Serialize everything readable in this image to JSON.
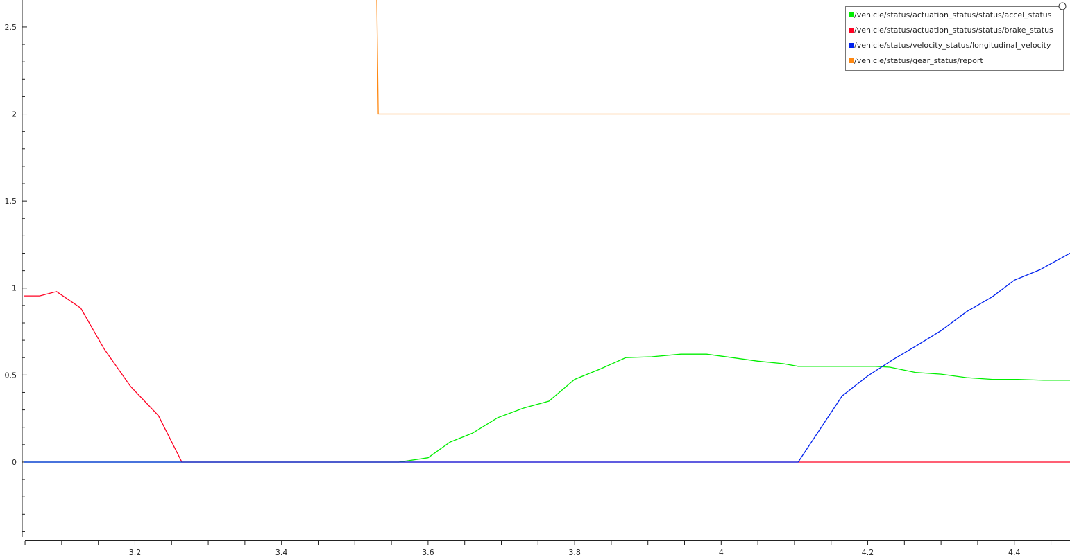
{
  "chart_data": {
    "type": "line",
    "title": "",
    "xlabel": "",
    "ylabel": "",
    "xlim": [
      3.049,
      4.476
    ],
    "ylim": [
      -0.454,
      2.655
    ],
    "x_ticks": [
      3.2,
      3.4,
      3.6,
      3.8,
      4,
      4.2,
      4.4
    ],
    "x_tick_labels": [
      "3.2",
      "3.4",
      "3.6",
      "3.8",
      "4",
      "4.2",
      "4.4"
    ],
    "y_ticks": [
      0,
      0.5,
      1,
      1.5,
      2,
      2.5
    ],
    "y_tick_labels": [
      "0",
      "0.5",
      "1",
      "1.5",
      "2",
      "2.5"
    ],
    "grid": false,
    "legend_position": "top-right",
    "series": [
      {
        "name": "/vehicle/status/actuation_status/status/accel_status",
        "color": "#00ee00",
        "points": [
          [
            3.049,
            0
          ],
          [
            3.56,
            0
          ],
          [
            3.6,
            0.025
          ],
          [
            3.63,
            0.115
          ],
          [
            3.66,
            0.165
          ],
          [
            3.695,
            0.255
          ],
          [
            3.73,
            0.31
          ],
          [
            3.765,
            0.35
          ],
          [
            3.8,
            0.475
          ],
          [
            3.835,
            0.535
          ],
          [
            3.87,
            0.6
          ],
          [
            3.905,
            0.605
          ],
          [
            3.945,
            0.62
          ],
          [
            3.98,
            0.62
          ],
          [
            4.015,
            0.6
          ],
          [
            4.05,
            0.58
          ],
          [
            4.085,
            0.565
          ],
          [
            4.105,
            0.55
          ],
          [
            4.14,
            0.55
          ],
          [
            4.175,
            0.55
          ],
          [
            4.21,
            0.55
          ],
          [
            4.23,
            0.545
          ],
          [
            4.265,
            0.515
          ],
          [
            4.3,
            0.505
          ],
          [
            4.335,
            0.485
          ],
          [
            4.37,
            0.475
          ],
          [
            4.405,
            0.475
          ],
          [
            4.44,
            0.47
          ],
          [
            4.476,
            0.47
          ]
        ]
      },
      {
        "name": "/vehicle/status/actuation_status/status/brake_status",
        "color": "#ff0022",
        "points": [
          [
            3.049,
            0.955
          ],
          [
            3.07,
            0.955
          ],
          [
            3.093,
            0.98
          ],
          [
            3.126,
            0.885
          ],
          [
            3.158,
            0.65
          ],
          [
            3.194,
            0.435
          ],
          [
            3.232,
            0.267
          ],
          [
            3.264,
            0
          ],
          [
            4.476,
            0
          ]
        ]
      },
      {
        "name": "/vehicle/status/velocity_status/longitudinal_velocity",
        "color": "#0022ee",
        "points": [
          [
            3.049,
            0
          ],
          [
            4.105,
            0
          ],
          [
            4.165,
            0.38
          ],
          [
            4.2,
            0.495
          ],
          [
            4.235,
            0.59
          ],
          [
            4.265,
            0.665
          ],
          [
            4.3,
            0.755
          ],
          [
            4.335,
            0.865
          ],
          [
            4.37,
            0.95
          ],
          [
            4.4,
            1.045
          ],
          [
            4.435,
            1.105
          ],
          [
            4.476,
            1.2
          ]
        ]
      },
      {
        "name": "/vehicle/status/gear_status/report",
        "color": "#ff8811",
        "points": [
          [
            3.529,
            3
          ],
          [
            3.532,
            2
          ],
          [
            4.476,
            2
          ]
        ]
      }
    ]
  }
}
